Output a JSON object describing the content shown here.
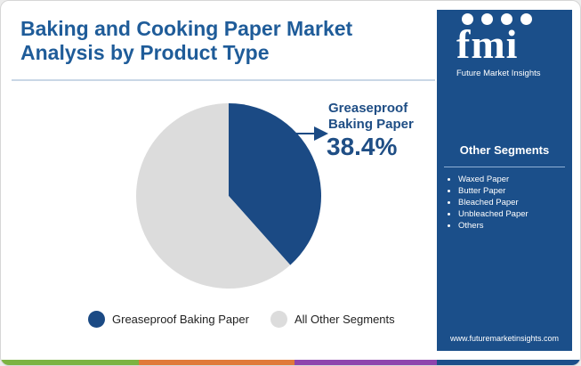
{
  "title_line1": "Baking and Cooking Paper Market",
  "title_line2": "Analysis by Product Type",
  "brand": {
    "logo": "fmi",
    "name": "Future Market Insights",
    "website": "www.futuremarketinsights.com"
  },
  "other_segments": {
    "heading": "Other Segments",
    "items": [
      "Waxed Paper",
      "Butter Paper",
      "Bleached Paper",
      "Unbleached Paper",
      "Others"
    ]
  },
  "colors": {
    "title": "#1f5c99",
    "primary_slice": "#1b4a84",
    "other_slice": "#dcdcdc",
    "sidebar": "#1b4f8a",
    "bottom_bar": [
      "#7cb342",
      "#e07a3a",
      "#8e44ad",
      "#1b4f8a"
    ]
  },
  "chart_data": {
    "type": "pie",
    "slices": [
      {
        "label": "Greaseproof Baking Paper",
        "value": 38.4,
        "color": "#1b4a84"
      },
      {
        "label": "All Other Segments",
        "value": 61.6,
        "color": "#dcdcdc"
      }
    ],
    "callout": {
      "label_line1": "Greaseproof",
      "label_line2": "Baking Paper",
      "value": "38.4%"
    },
    "legend": [
      "Greaseproof Baking Paper",
      "All Other Segments"
    ],
    "legend_position": "bottom"
  }
}
